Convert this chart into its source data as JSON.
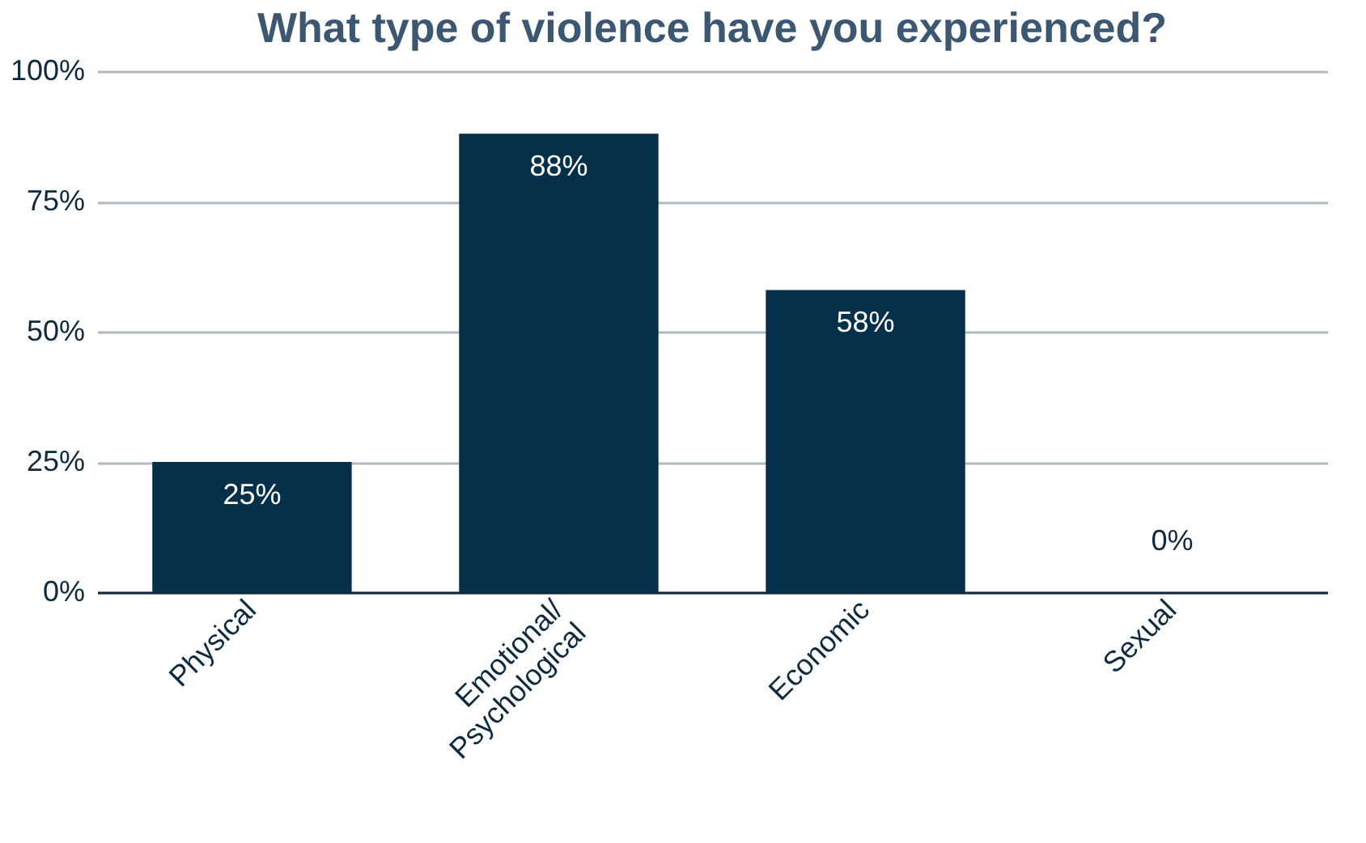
{
  "chart_data": {
    "type": "bar",
    "title": "What type of violence have you experienced?",
    "categories": [
      "Physical",
      "Emotional/ Psychological",
      "Economic",
      "Sexual"
    ],
    "values": [
      25,
      88,
      58,
      0
    ],
    "value_labels": [
      "25%",
      "88%",
      "58%",
      "0%"
    ],
    "color": "#063049",
    "ylim": [
      0,
      100
    ],
    "yticks": [
      {
        "value": 0,
        "label": "0%"
      },
      {
        "value": 25,
        "label": "25%"
      },
      {
        "value": 50,
        "label": "50%"
      },
      {
        "value": 75,
        "label": "75%"
      },
      {
        "value": 100,
        "label": "100%"
      }
    ],
    "grid": "y"
  }
}
